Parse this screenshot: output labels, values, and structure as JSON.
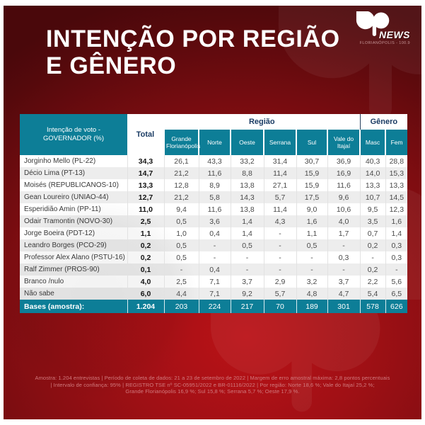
{
  "header": {
    "title_line1": "INTENÇÃO POR REGIÃO",
    "title_line2": "E GÊNERO",
    "logo": {
      "news": "NEWS",
      "station": "FLORIANÓPOLIS - 100.9"
    }
  },
  "chart_data": {
    "type": "table",
    "title": "INTENÇÃO POR REGIÃO E GÊNERO",
    "corner_label": "Intenção de voto - GOVERNADOR (%)",
    "total_label": "Total",
    "groups": [
      {
        "label": "Região",
        "span": 6
      },
      {
        "label": "Gênero",
        "span": 2
      }
    ],
    "columns": [
      "Grande Florianópolis",
      "Norte",
      "Oeste",
      "Serrana",
      "Sul",
      "Vale do Itajaí",
      "Masc",
      "Fem"
    ],
    "rows": [
      {
        "name": "Jorginho Mello (PL-22)",
        "total": "34,3",
        "values": [
          "26,1",
          "43,3",
          "33,2",
          "31,4",
          "30,7",
          "36,9",
          "40,3",
          "28,8"
        ]
      },
      {
        "name": "Décio Lima (PT-13)",
        "total": "14,7",
        "values": [
          "21,2",
          "11,6",
          "8,8",
          "11,4",
          "15,9",
          "16,9",
          "14,0",
          "15,3"
        ]
      },
      {
        "name": "Moisés (REPUBLICANOS-10)",
        "total": "13,3",
        "values": [
          "12,8",
          "8,9",
          "13,8",
          "27,1",
          "15,9",
          "11,6",
          "13,3",
          "13,3"
        ]
      },
      {
        "name": "Gean Loureiro (UNIAO-44)",
        "total": "12,7",
        "values": [
          "21,2",
          "5,8",
          "14,3",
          "5,7",
          "17,5",
          "9,6",
          "10,7",
          "14,5"
        ]
      },
      {
        "name": "Esperidião Amin (PP-11)",
        "total": "11,0",
        "values": [
          "9,4",
          "11,6",
          "13,8",
          "11,4",
          "9,0",
          "10,6",
          "9,5",
          "12,3"
        ]
      },
      {
        "name": "Odair Tramontin (NOVO-30)",
        "total": "2,5",
        "values": [
          "0,5",
          "3,6",
          "1,4",
          "4,3",
          "1,6",
          "4,0",
          "3,5",
          "1,6"
        ]
      },
      {
        "name": "Jorge Boeira (PDT-12)",
        "total": "1,1",
        "values": [
          "1,0",
          "0,4",
          "1,4",
          "-",
          "1,1",
          "1,7",
          "0,7",
          "1,4"
        ]
      },
      {
        "name": "Leandro Borges (PCO-29)",
        "total": "0,2",
        "values": [
          "0,5",
          "-",
          "0,5",
          "-",
          "0,5",
          "-",
          "0,2",
          "0,3"
        ]
      },
      {
        "name": "Professor Alex Alano (PSTU-16)",
        "total": "0,2",
        "values": [
          "0,5",
          "-",
          "-",
          "-",
          "-",
          "0,3",
          "-",
          "0,3"
        ]
      },
      {
        "name": "Ralf Zimmer (PROS-90)",
        "total": "0,1",
        "values": [
          "-",
          "0,4",
          "-",
          "-",
          "-",
          "-",
          "0,2",
          "-"
        ]
      },
      {
        "name": "Branco /nulo",
        "total": "4,0",
        "values": [
          "2,5",
          "7,1",
          "3,7",
          "2,9",
          "3,2",
          "3,7",
          "2,2",
          "5,6"
        ]
      },
      {
        "name": "Não sabe",
        "total": "6,0",
        "values": [
          "4,4",
          "7,1",
          "9,2",
          "5,7",
          "4,8",
          "4,7",
          "5,4",
          "6,5"
        ]
      }
    ],
    "bases": {
      "label": "Bases (amostra):",
      "total": "1.204",
      "values": [
        "203",
        "224",
        "217",
        "70",
        "189",
        "301",
        "578",
        "626"
      ]
    }
  },
  "footer_lines": [
    "Amostra: 1.204 entrevistas | Período de coleta de dados: 21 a 23 de setembro de 2022 | Margem de erro amostral máxima: 2,8 pontos percentuais",
    "| Intervalo de confiança: 95% | REGISTRO TSE nº SC-05951/2022 e BR-01116/2022 | Por região: Norte 18,6 %; Vale do Itajaí 25,2 %;",
    "Grande Florianópolis 16,9 %; Sul 15,8 %; Serrana 5,7 %; Oeste 17,9 %."
  ],
  "colors": {
    "background_red": "#a01015",
    "teal": "#0d7e97",
    "navy": "#1b3c64",
    "footer_text": "#d17a7e"
  }
}
